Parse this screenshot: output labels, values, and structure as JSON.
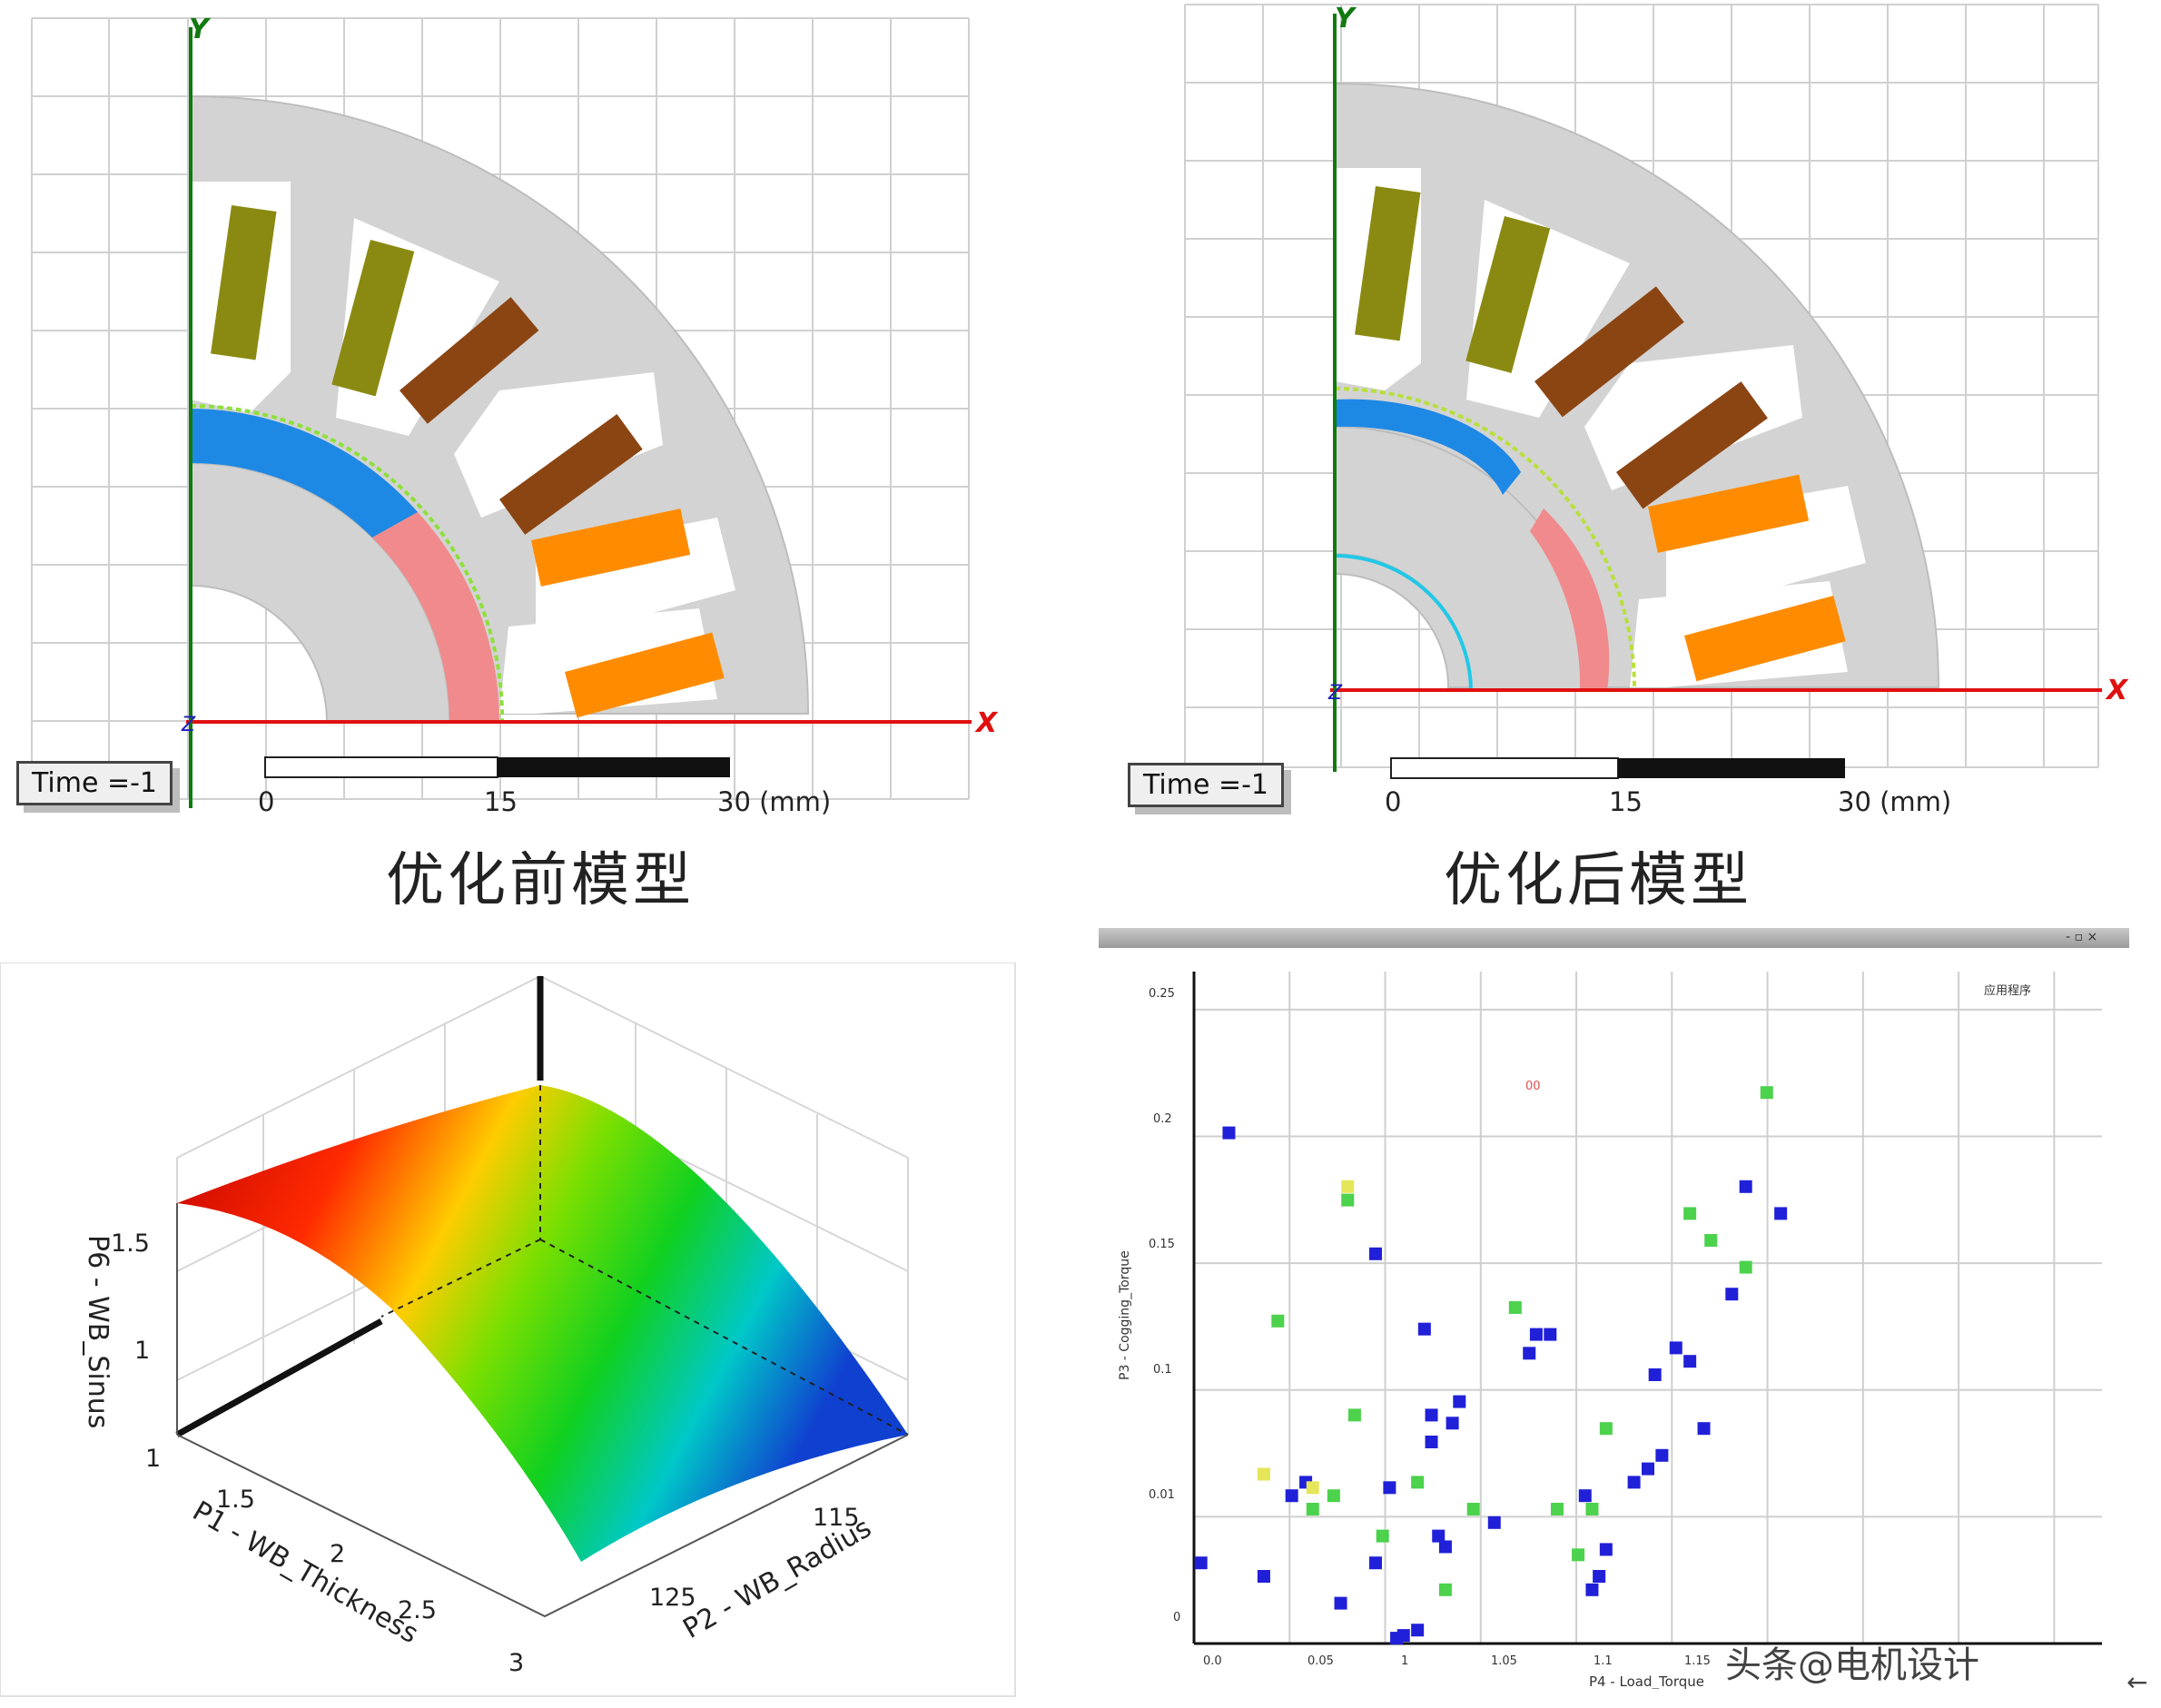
{
  "top_left": {
    "time_label": "Time =-1",
    "axis_x": "X",
    "axis_y": "Y",
    "axis_z": "Z",
    "scale_ticks": [
      "0",
      "15",
      "30 (mm)"
    ],
    "caption": "优化前模型"
  },
  "top_right": {
    "time_label": "Time =-1",
    "axis_x": "X",
    "axis_y": "Y",
    "axis_z": "Z",
    "scale_ticks": [
      "0",
      "15",
      "30 (mm)"
    ],
    "caption": "优化后模型"
  },
  "colors": {
    "core": "#d3d3d3",
    "magnet_blue": "#1e88e5",
    "magnet_pink": "#f08a8c",
    "coil_olive": "#8a8a12",
    "coil_brown": "#8b4513",
    "coil_orange": "#ff8c00",
    "axis_red": "#e01010",
    "axis_green": "#107a10"
  },
  "surface_plot": {
    "zlabel": "P6 - WB_Sinus",
    "xlabel": "P1 - WB_Thickness",
    "ylabel": "P2 - WB_Radius",
    "z_ticks": [
      "1",
      "1.5"
    ],
    "x_ticks": [
      "1",
      "1.5",
      "2",
      "2.5",
      "3"
    ],
    "y_ticks": [
      "125",
      "115"
    ]
  },
  "scatter_plot": {
    "window_controls": "- ▫ ×",
    "legend_label": "应用程序",
    "marker_label": "00",
    "xlabel": "P4 - Load_Torque",
    "ylabel": "P3 - Cogging_Torque",
    "x_ticks": [
      "0.0",
      "0.05",
      "1",
      "1.05",
      "1.1",
      "1.15"
    ],
    "y_ticks": [
      "0",
      "0.01",
      "0.1",
      "0.15",
      "0.2",
      "0.25"
    ],
    "watermark": "头条@电机设计",
    "back_glyph": "←"
  },
  "chart_data": {
    "type": "scatter",
    "title": "",
    "xlabel": "P4 - Load_Torque",
    "ylabel": "P3 - Cogging_Torque",
    "xlim": [
      0,
      1.3
    ],
    "ylim": [
      0,
      0.25
    ],
    "series": [
      {
        "name": "",
        "color": "#2020d8",
        "points": [
          [
            0.01,
            0.03
          ],
          [
            0.05,
            0.19
          ],
          [
            0.1,
            0.025
          ],
          [
            0.14,
            0.055
          ],
          [
            0.16,
            0.06
          ],
          [
            0.21,
            0.015
          ],
          [
            0.26,
            0.145
          ],
          [
            0.26,
            0.03
          ],
          [
            0.28,
            0.058
          ],
          [
            0.33,
            0.117
          ],
          [
            0.34,
            0.085
          ],
          [
            0.34,
            0.075
          ],
          [
            0.35,
            0.04
          ],
          [
            0.36,
            0.036
          ],
          [
            0.37,
            0.082
          ],
          [
            0.38,
            0.09
          ],
          [
            0.29,
            0.002
          ],
          [
            0.3,
            0.003
          ],
          [
            0.32,
            0.005
          ],
          [
            0.43,
            0.045
          ],
          [
            0.49,
            0.115
          ],
          [
            0.48,
            0.108
          ],
          [
            0.51,
            0.115
          ],
          [
            0.56,
            0.055
          ],
          [
            0.57,
            0.02
          ],
          [
            0.58,
            0.025
          ],
          [
            0.59,
            0.035
          ],
          [
            0.63,
            0.06
          ],
          [
            0.65,
            0.065
          ],
          [
            0.66,
            0.1
          ],
          [
            0.67,
            0.07
          ],
          [
            0.69,
            0.11
          ],
          [
            0.71,
            0.105
          ],
          [
            0.73,
            0.08
          ],
          [
            0.77,
            0.13
          ],
          [
            0.79,
            0.17
          ],
          [
            0.84,
            0.16
          ]
        ]
      },
      {
        "name": "",
        "color": "#4cd24c",
        "points": [
          [
            0.12,
            0.12
          ],
          [
            0.17,
            0.05
          ],
          [
            0.2,
            0.055
          ],
          [
            0.23,
            0.085
          ],
          [
            0.22,
            0.165
          ],
          [
            0.27,
            0.04
          ],
          [
            0.32,
            0.06
          ],
          [
            0.36,
            0.02
          ],
          [
            0.4,
            0.05
          ],
          [
            0.46,
            0.125
          ],
          [
            0.52,
            0.05
          ],
          [
            0.55,
            0.033
          ],
          [
            0.57,
            0.05
          ],
          [
            0.59,
            0.08
          ],
          [
            0.71,
            0.16
          ],
          [
            0.74,
            0.15
          ],
          [
            0.79,
            0.14
          ],
          [
            0.82,
            0.205
          ]
        ]
      },
      {
        "name": "",
        "color": "#e6e65a",
        "points": [
          [
            0.1,
            0.063
          ],
          [
            0.17,
            0.058
          ],
          [
            0.22,
            0.17
          ]
        ]
      }
    ]
  }
}
